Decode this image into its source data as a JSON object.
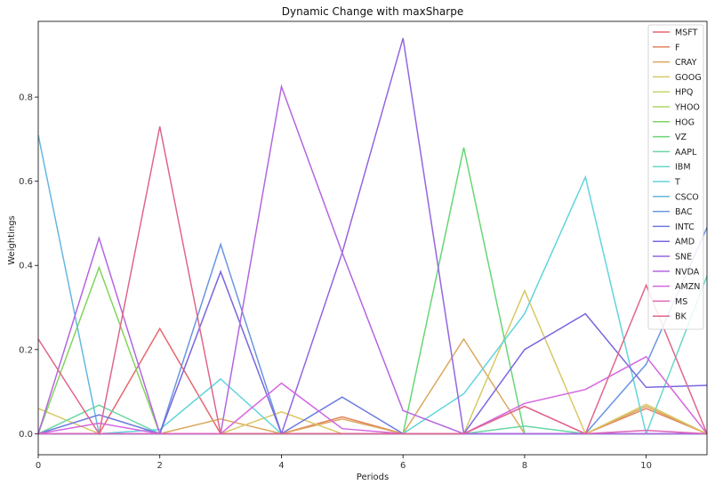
{
  "chart_data": {
    "type": "line",
    "title": "Dynamic Change with maxSharpe",
    "xlabel": "Periods",
    "ylabel": "Weightings",
    "xlim": [
      0,
      11
    ],
    "ylim": [
      -0.05,
      0.98
    ],
    "xticks": [
      0,
      2,
      4,
      6,
      8,
      10
    ],
    "yticks": [
      0.0,
      0.2,
      0.4,
      0.6,
      0.8
    ],
    "grid": false,
    "legend_position": "top-right",
    "x": [
      0,
      1,
      2,
      3,
      4,
      5,
      6,
      7,
      8,
      9,
      10,
      11
    ],
    "series": [
      {
        "name": "MSFT",
        "color": "#e8666e",
        "values": [
          0,
          0,
          0.25,
          0,
          0,
          0,
          0,
          0,
          0,
          0,
          0,
          0
        ]
      },
      {
        "name": "F",
        "color": "#e3835c",
        "values": [
          0,
          0,
          0,
          0,
          0,
          0.04,
          0,
          0,
          0,
          0,
          0.06,
          0
        ]
      },
      {
        "name": "CRAY",
        "color": "#dba85e",
        "values": [
          0,
          0,
          0,
          0.035,
          0,
          0.035,
          0,
          0.225,
          0,
          0,
          0.065,
          0
        ]
      },
      {
        "name": "GOOG",
        "color": "#d8c866",
        "values": [
          0.06,
          0,
          0,
          0,
          0.052,
          0,
          0,
          0,
          0.34,
          0,
          0.07,
          0
        ]
      },
      {
        "name": "HPQ",
        "color": "#c6d66a",
        "values": [
          0,
          0,
          0,
          0,
          0,
          0,
          0,
          0,
          0,
          0,
          0,
          0
        ]
      },
      {
        "name": "YHOO",
        "color": "#a5d965",
        "values": [
          0,
          0,
          0,
          0,
          0,
          0,
          0,
          0,
          0,
          0,
          0,
          0
        ]
      },
      {
        "name": "HOG",
        "color": "#80d65c",
        "values": [
          0,
          0.395,
          0,
          0,
          0,
          0,
          0,
          0,
          0,
          0,
          0,
          0
        ]
      },
      {
        "name": "VZ",
        "color": "#66d875",
        "values": [
          0,
          0,
          0,
          0,
          0,
          0,
          0,
          0.68,
          0,
          0,
          0,
          0
        ]
      },
      {
        "name": "AAPL",
        "color": "#66d8a2",
        "values": [
          0,
          0.068,
          0,
          0,
          0,
          0,
          0,
          0,
          0.018,
          0,
          0,
          0
        ]
      },
      {
        "name": "IBM",
        "color": "#66d8c8",
        "values": [
          0,
          0,
          0,
          0,
          0,
          0,
          0,
          0,
          0,
          0,
          0,
          0.375
        ]
      },
      {
        "name": "T",
        "color": "#62d4dc",
        "values": [
          0,
          0,
          0.01,
          0.13,
          0,
          0,
          0,
          0.095,
          0.285,
          0.61,
          0,
          0
        ]
      },
      {
        "name": "CSCO",
        "color": "#66b8e0",
        "values": [
          0.71,
          0,
          0,
          0,
          0,
          0,
          0,
          0,
          0,
          0,
          0,
          0
        ]
      },
      {
        "name": "BAC",
        "color": "#6a96e0",
        "values": [
          0,
          0,
          0,
          0.45,
          0,
          0,
          0,
          0,
          0,
          0,
          0.165,
          0.49
        ]
      },
      {
        "name": "INTC",
        "color": "#6a7ae0",
        "values": [
          0,
          0.045,
          0,
          0,
          0,
          0.087,
          0,
          0,
          0,
          0,
          0,
          0
        ]
      },
      {
        "name": "AMD",
        "color": "#7866e0",
        "values": [
          0,
          0,
          0,
          0.385,
          0,
          0,
          0,
          0,
          0.2,
          0.285,
          0.11,
          0.115
        ]
      },
      {
        "name": "SNE",
        "color": "#9466e0",
        "values": [
          0,
          0,
          0,
          0,
          0,
          0.43,
          0.94,
          0,
          0,
          0,
          0,
          0
        ]
      },
      {
        "name": "NVDA",
        "color": "#b466e0",
        "values": [
          0,
          0.465,
          0,
          0,
          0.825,
          0.43,
          0.055,
          0,
          0,
          0,
          0,
          0
        ]
      },
      {
        "name": "AMZN",
        "color": "#d466e0",
        "values": [
          0,
          0.025,
          0,
          0,
          0.12,
          0.012,
          0,
          0,
          0.072,
          0.105,
          0.183,
          0
        ]
      },
      {
        "name": "MS",
        "color": "#dc66b8",
        "values": [
          0,
          0,
          0,
          0,
          0,
          0,
          0,
          0,
          0.065,
          0,
          0.008,
          0
        ]
      },
      {
        "name": "BK",
        "color": "#e0668a",
        "values": [
          0.225,
          0,
          0.73,
          0,
          0,
          0,
          0,
          0,
          0.065,
          0,
          0.353,
          0
        ]
      }
    ]
  }
}
